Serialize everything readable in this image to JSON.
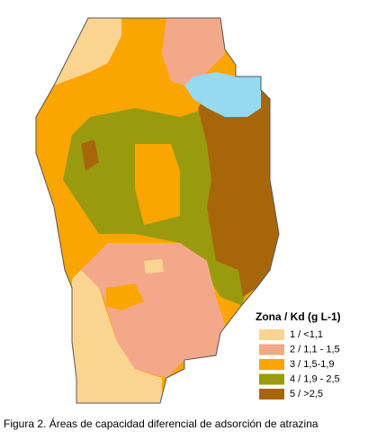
{
  "legend": {
    "title": "Zona / Kd (g L-1)",
    "items": [
      {
        "label": "1 / <1,1",
        "color": "#fcd491"
      },
      {
        "label": "2 / 1,1 - 1,5",
        "color": "#f4a88a"
      },
      {
        "label": "3 / 1,5-1,9",
        "color": "#fba500"
      },
      {
        "label": "4 / 1,9 - 2,5",
        "color": "#9a9a0f"
      },
      {
        "label": "5 / >2,5",
        "color": "#a8660a"
      }
    ]
  },
  "caption": "Figura 2. Áreas de capacidad diferencial de adsorción de atrazina"
}
